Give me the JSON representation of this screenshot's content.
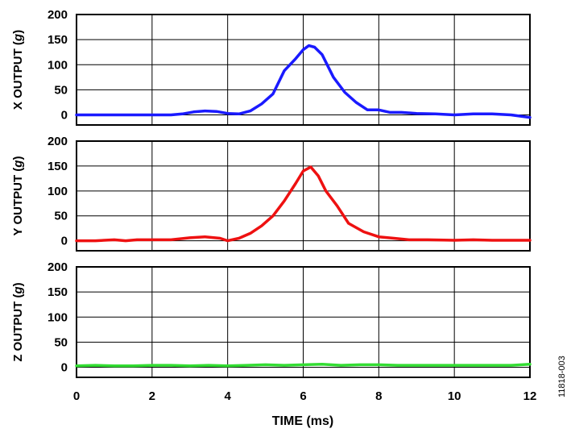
{
  "chart_data": {
    "type": "line",
    "xlabel": "TIME (ms)",
    "xlim": [
      0,
      12
    ],
    "x_ticks": [
      "0",
      "2",
      "4",
      "6",
      "8",
      "10",
      "12"
    ],
    "x_grid": [
      0,
      2,
      4,
      6,
      8,
      10,
      12
    ],
    "figure_code": "11818-003",
    "grid": true,
    "panels": [
      {
        "ylabel_main": "X OUTPUT (",
        "ylabel_unit": "g",
        "ylabel_end": ")",
        "ylim": [
          -20,
          200
        ],
        "y_ticks": [
          "0",
          "50",
          "100",
          "150",
          "200"
        ],
        "y_tick_values": [
          0,
          50,
          100,
          150,
          200
        ],
        "color": "#1a1aff",
        "x": [
          0,
          0.5,
          1,
          1.5,
          2,
          2.5,
          2.8,
          3.1,
          3.4,
          3.7,
          4,
          4.3,
          4.6,
          4.9,
          5.2,
          5.5,
          5.8,
          6.0,
          6.15,
          6.3,
          6.5,
          6.8,
          7.1,
          7.4,
          7.7,
          8.0,
          8.3,
          8.6,
          9.0,
          9.5,
          10,
          10.5,
          11,
          11.5,
          12
        ],
        "y": [
          0,
          0,
          0,
          0,
          0,
          0,
          2,
          6,
          8,
          7,
          3,
          2,
          8,
          22,
          42,
          88,
          112,
          130,
          138,
          135,
          120,
          75,
          45,
          25,
          10,
          10,
          5,
          5,
          3,
          2,
          0,
          2,
          2,
          0,
          -5
        ]
      },
      {
        "ylabel_main": "Y OUTPUT (",
        "ylabel_unit": "g",
        "ylabel_end": ")",
        "ylim": [
          -20,
          200
        ],
        "y_ticks": [
          "0",
          "50",
          "100",
          "150",
          "200"
        ],
        "y_tick_values": [
          0,
          50,
          100,
          150,
          200
        ],
        "color": "#ee1111",
        "x": [
          0,
          0.5,
          1,
          1.3,
          1.6,
          2,
          2.5,
          3,
          3.4,
          3.8,
          4.0,
          4.3,
          4.6,
          4.9,
          5.2,
          5.5,
          5.8,
          6.0,
          6.2,
          6.4,
          6.6,
          6.9,
          7.2,
          7.6,
          8.0,
          8.4,
          8.8,
          9.3,
          10,
          10.5,
          11,
          11.5,
          12
        ],
        "y": [
          0,
          0,
          2,
          0,
          2,
          2,
          2,
          6,
          8,
          5,
          0,
          5,
          15,
          30,
          50,
          80,
          115,
          140,
          148,
          130,
          100,
          70,
          35,
          18,
          8,
          5,
          2,
          2,
          1,
          2,
          1,
          1,
          1
        ]
      },
      {
        "ylabel_main": "Z OUTPUT (",
        "ylabel_unit": "g",
        "ylabel_end": ")",
        "ylim": [
          -20,
          200
        ],
        "y_ticks": [
          "0",
          "50",
          "100",
          "150",
          "200"
        ],
        "y_tick_values": [
          0,
          50,
          100,
          150,
          200
        ],
        "color": "#33dd33",
        "x": [
          0,
          0.5,
          1,
          1.5,
          2,
          2.5,
          3,
          3.5,
          4,
          4.5,
          5,
          5.5,
          6,
          6.5,
          7,
          7.5,
          8,
          8.5,
          9,
          9.5,
          10,
          10.5,
          11,
          11.5,
          12
        ],
        "y": [
          3,
          4,
          3,
          3,
          4,
          4,
          3,
          4,
          3,
          4,
          5,
          4,
          5,
          6,
          4,
          5,
          5,
          4,
          4,
          4,
          4,
          4,
          4,
          4,
          6
        ]
      }
    ]
  }
}
